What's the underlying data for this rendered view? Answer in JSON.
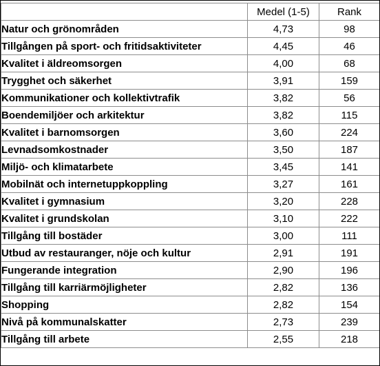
{
  "table": {
    "headers": {
      "name": "",
      "medel": "Medel (1-5)",
      "rank": "Rank"
    },
    "rows": [
      {
        "name": "Natur och grönområden",
        "medel": "4,73",
        "rank": "98"
      },
      {
        "name": "Tillgången på sport- och fritidsaktiviteter",
        "medel": "4,45",
        "rank": "46"
      },
      {
        "name": "Kvalitet i äldreomsorgen",
        "medel": "4,00",
        "rank": "68"
      },
      {
        "name": "Trygghet och säkerhet",
        "medel": "3,91",
        "rank": "159"
      },
      {
        "name": "Kommunikationer och kollektivtrafik",
        "medel": "3,82",
        "rank": "56"
      },
      {
        "name": "Boendemiljöer och arkitektur",
        "medel": "3,82",
        "rank": "115"
      },
      {
        "name": "Kvalitet i barnomsorgen",
        "medel": "3,60",
        "rank": "224"
      },
      {
        "name": "Levnadsomkostnader",
        "medel": "3,50",
        "rank": "187"
      },
      {
        "name": "Miljö- och klimatarbete",
        "medel": "3,45",
        "rank": "141"
      },
      {
        "name": "Mobilnät och internetuppkoppling",
        "medel": "3,27",
        "rank": "161"
      },
      {
        "name": "Kvalitet i gymnasium",
        "medel": "3,20",
        "rank": "228"
      },
      {
        "name": "Kvalitet i grundskolan",
        "medel": "3,10",
        "rank": "222"
      },
      {
        "name": "Tillgång till bostäder",
        "medel": "3,00",
        "rank": "111"
      },
      {
        "name": "Utbud av restauranger, nöje och kultur",
        "medel": "2,91",
        "rank": "191"
      },
      {
        "name": "Fungerande integration",
        "medel": "2,90",
        "rank": "196"
      },
      {
        "name": "Tillgång till karriärmöjligheter",
        "medel": "2,82",
        "rank": "136"
      },
      {
        "name": "Shopping",
        "medel": "2,82",
        "rank": "154"
      },
      {
        "name": "Nivå på kommunalskatter",
        "medel": "2,73",
        "rank": "239"
      },
      {
        "name": "Tillgång till arbete",
        "medel": "2,55",
        "rank": "218"
      }
    ]
  }
}
